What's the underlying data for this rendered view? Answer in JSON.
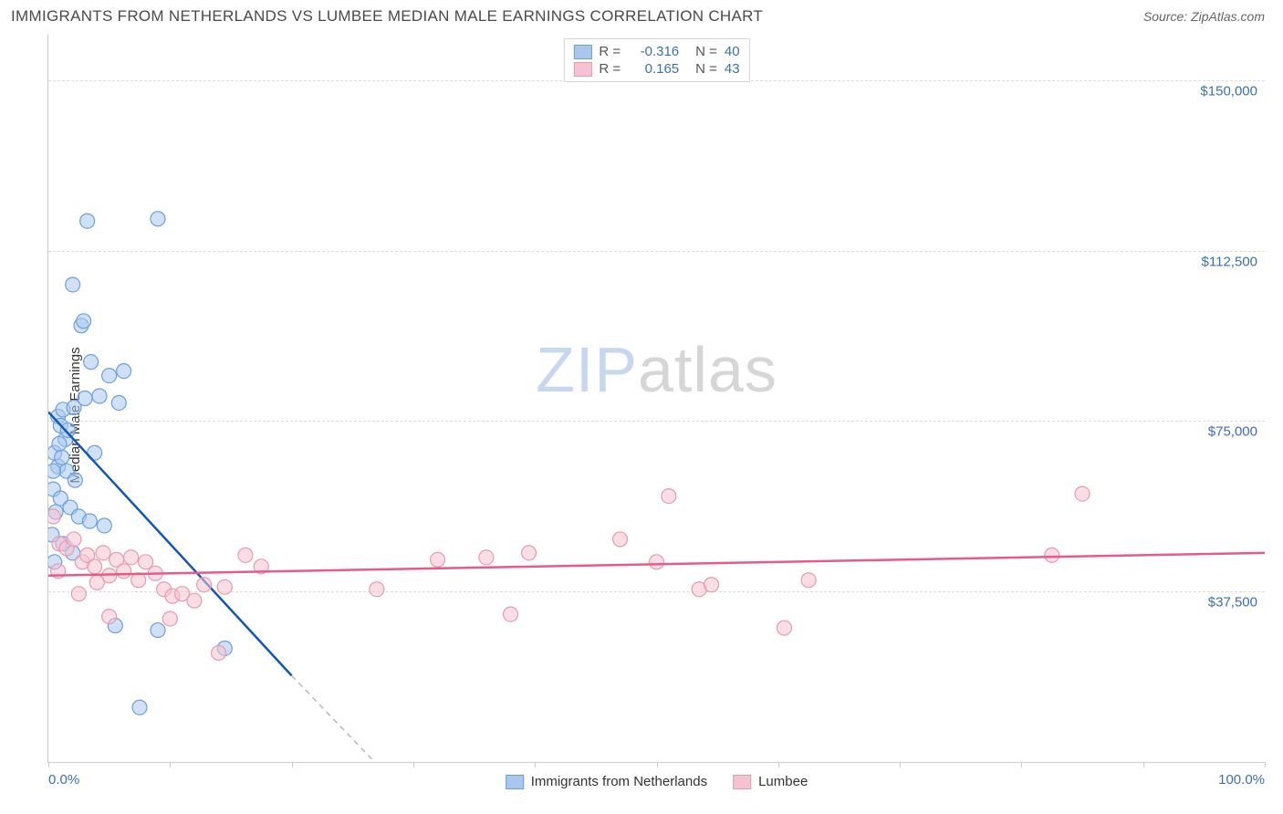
{
  "title": "IMMIGRANTS FROM NETHERLANDS VS LUMBEE MEDIAN MALE EARNINGS CORRELATION CHART",
  "source_label": "Source:",
  "source_name": "ZipAtlas.com",
  "watermark_zip": "ZIP",
  "watermark_atlas": "atlas",
  "chart": {
    "type": "scatter-with-regression",
    "ylabel": "Median Male Earnings",
    "xlim": [
      0,
      100
    ],
    "ylim": [
      0,
      160000
    ],
    "background_color": "#ffffff",
    "grid_color": "#dddddd",
    "axis_color": "#cccccc",
    "title_color": "#4a4a4a",
    "label_fontsize": 15,
    "tick_color": "#3b6fb5",
    "yticks": [
      {
        "value": 37500,
        "label": "$37,500"
      },
      {
        "value": 75000,
        "label": "$75,000"
      },
      {
        "value": 112500,
        "label": "$112,500"
      },
      {
        "value": 150000,
        "label": "$150,000"
      }
    ],
    "xtick_positions": [
      0,
      10,
      20,
      30,
      40,
      50,
      60,
      70,
      80,
      90,
      100
    ],
    "xlim_labels": {
      "min": "0.0%",
      "max": "100.0%"
    },
    "marker_radius": 8,
    "marker_opacity": 0.55,
    "series": [
      {
        "name": "Immigrants from Netherlands",
        "color": "#6b9fe0",
        "fill": "#a9c6ec",
        "line_color": "#1258b8",
        "line_dash_color": "#b8b8b8",
        "R": "-0.316",
        "N": "40",
        "regression": {
          "x1": 0,
          "y1": 77000,
          "x2_solid": 20,
          "x2_dash": 34,
          "y_at_x2_solid": 19000,
          "y_at_x2_dash": -20000
        },
        "points": [
          {
            "x": 3.2,
            "y": 119000
          },
          {
            "x": 9.0,
            "y": 119500
          },
          {
            "x": 2.0,
            "y": 105000
          },
          {
            "x": 2.7,
            "y": 96000
          },
          {
            "x": 2.9,
            "y": 97000
          },
          {
            "x": 3.5,
            "y": 88000
          },
          {
            "x": 5.0,
            "y": 85000
          },
          {
            "x": 6.2,
            "y": 86000
          },
          {
            "x": 0.8,
            "y": 76000
          },
          {
            "x": 1.2,
            "y": 77500
          },
          {
            "x": 1.0,
            "y": 74000
          },
          {
            "x": 1.4,
            "y": 71000
          },
          {
            "x": 2.1,
            "y": 78000
          },
          {
            "x": 3.0,
            "y": 80000
          },
          {
            "x": 4.2,
            "y": 80500
          },
          {
            "x": 5.8,
            "y": 79000
          },
          {
            "x": 0.5,
            "y": 68000
          },
          {
            "x": 0.8,
            "y": 65000
          },
          {
            "x": 1.1,
            "y": 67000
          },
          {
            "x": 1.5,
            "y": 64000
          },
          {
            "x": 2.2,
            "y": 62000
          },
          {
            "x": 0.4,
            "y": 60000
          },
          {
            "x": 1.0,
            "y": 58000
          },
          {
            "x": 1.8,
            "y": 56000
          },
          {
            "x": 0.6,
            "y": 55000
          },
          {
            "x": 2.5,
            "y": 54000
          },
          {
            "x": 3.4,
            "y": 53000
          },
          {
            "x": 4.6,
            "y": 52000
          },
          {
            "x": 0.3,
            "y": 50000
          },
          {
            "x": 1.2,
            "y": 48000
          },
          {
            "x": 2.0,
            "y": 46000
          },
          {
            "x": 0.5,
            "y": 44000
          },
          {
            "x": 5.5,
            "y": 30000
          },
          {
            "x": 9.0,
            "y": 29000
          },
          {
            "x": 14.5,
            "y": 25000
          },
          {
            "x": 7.5,
            "y": 12000
          },
          {
            "x": 0.4,
            "y": 64000
          },
          {
            "x": 0.9,
            "y": 70000
          },
          {
            "x": 1.6,
            "y": 73000
          },
          {
            "x": 3.8,
            "y": 68000
          }
        ]
      },
      {
        "name": "Lumbee",
        "color": "#e89ab0",
        "fill": "#f4c3d1",
        "line_color": "#e85a8a",
        "R": "0.165",
        "N": "43",
        "regression": {
          "x1": 0,
          "y1": 41000,
          "x2_solid": 100,
          "y_at_x2_solid": 46000
        },
        "points": [
          {
            "x": 0.4,
            "y": 54000
          },
          {
            "x": 0.9,
            "y": 48000
          },
          {
            "x": 1.5,
            "y": 47000
          },
          {
            "x": 2.1,
            "y": 49000
          },
          {
            "x": 2.8,
            "y": 44000
          },
          {
            "x": 3.2,
            "y": 45500
          },
          {
            "x": 3.8,
            "y": 43000
          },
          {
            "x": 4.5,
            "y": 46000
          },
          {
            "x": 5.0,
            "y": 41000
          },
          {
            "x": 5.6,
            "y": 44500
          },
          {
            "x": 6.2,
            "y": 42000
          },
          {
            "x": 6.8,
            "y": 45000
          },
          {
            "x": 7.4,
            "y": 40000
          },
          {
            "x": 8.0,
            "y": 44000
          },
          {
            "x": 8.8,
            "y": 41500
          },
          {
            "x": 9.5,
            "y": 38000
          },
          {
            "x": 10.2,
            "y": 36500
          },
          {
            "x": 11.0,
            "y": 37000
          },
          {
            "x": 12.0,
            "y": 35500
          },
          {
            "x": 12.8,
            "y": 39000
          },
          {
            "x": 14.0,
            "y": 24000
          },
          {
            "x": 14.5,
            "y": 38500
          },
          {
            "x": 16.2,
            "y": 45500
          },
          {
            "x": 17.5,
            "y": 43000
          },
          {
            "x": 27.0,
            "y": 38000
          },
          {
            "x": 32.0,
            "y": 44500
          },
          {
            "x": 36.0,
            "y": 45000
          },
          {
            "x": 38.0,
            "y": 32500
          },
          {
            "x": 39.5,
            "y": 46000
          },
          {
            "x": 47.0,
            "y": 49000
          },
          {
            "x": 51.0,
            "y": 58500
          },
          {
            "x": 53.5,
            "y": 38000
          },
          {
            "x": 54.5,
            "y": 39000
          },
          {
            "x": 50.0,
            "y": 44000
          },
          {
            "x": 60.5,
            "y": 29500
          },
          {
            "x": 62.5,
            "y": 40000
          },
          {
            "x": 82.5,
            "y": 45500
          },
          {
            "x": 85.0,
            "y": 59000
          },
          {
            "x": 5.0,
            "y": 32000
          },
          {
            "x": 10.0,
            "y": 31500
          },
          {
            "x": 2.5,
            "y": 37000
          },
          {
            "x": 4.0,
            "y": 39500
          },
          {
            "x": 0.8,
            "y": 42000
          }
        ]
      }
    ],
    "legend_bottom": [
      {
        "label": "Immigrants from Netherlands",
        "fill": "#a9c6ec",
        "border": "#6b9fe0"
      },
      {
        "label": "Lumbee",
        "fill": "#f4c3d1",
        "border": "#e89ab0"
      }
    ]
  }
}
